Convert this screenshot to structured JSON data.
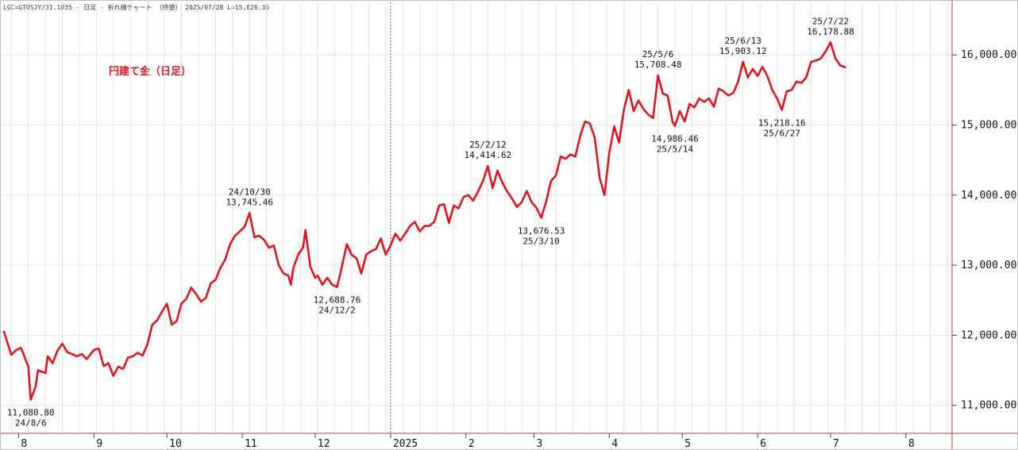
{
  "header": {
    "text": "LGC=GTUSJY/31.1035 - 日足 - 折れ線チャート （終値） 2025/07/28 L=15,826.36"
  },
  "colors": {
    "series": "#e3141b",
    "title": "#e0161e",
    "grid": "#e2e2e2",
    "axis": "#b04040"
  },
  "chart_data": {
    "type": "line",
    "title": "円建て金（日足）",
    "xlabel": "",
    "ylabel": "",
    "x_range": [
      "2024-07-25",
      "2025-08-20"
    ],
    "ylim": [
      10600,
      16750
    ],
    "grid": true,
    "y_ticks": [
      {
        "value": 11000,
        "label": "11,000.00"
      },
      {
        "value": 12000,
        "label": "12,000.00"
      },
      {
        "value": 13000,
        "label": "13,000.00"
      },
      {
        "value": 14000,
        "label": "14,000.00"
      },
      {
        "value": 15000,
        "label": "15,000.00"
      },
      {
        "value": 16000,
        "label": "16,000.00"
      }
    ],
    "x_ticks": [
      {
        "date": "2024-08-01",
        "label": "8"
      },
      {
        "date": "2024-09-01",
        "label": "9"
      },
      {
        "date": "2024-10-01",
        "label": "10"
      },
      {
        "date": "2024-11-01",
        "label": "11"
      },
      {
        "date": "2024-12-01",
        "label": "12"
      },
      {
        "date": "2025-01-01",
        "label": "2025"
      },
      {
        "date": "2025-02-01",
        "label": "2"
      },
      {
        "date": "2025-03-01",
        "label": "3"
      },
      {
        "date": "2025-04-01",
        "label": "4"
      },
      {
        "date": "2025-05-01",
        "label": "5"
      },
      {
        "date": "2025-06-01",
        "label": "6"
      },
      {
        "date": "2025-07-01",
        "label": "7"
      },
      {
        "date": "2025-08-01",
        "label": "8"
      }
    ],
    "year_divider": "2025-01-01",
    "series": [
      {
        "points": [
          [
            "2024-07-26",
            12050
          ],
          [
            "2024-07-29",
            11720
          ],
          [
            "2024-07-31",
            11790
          ],
          [
            "2024-08-02",
            11820
          ],
          [
            "2024-08-05",
            11550
          ],
          [
            "2024-08-06",
            11080.8
          ],
          [
            "2024-08-08",
            11270
          ],
          [
            "2024-08-09",
            11500
          ],
          [
            "2024-08-12",
            11460
          ],
          [
            "2024-08-13",
            11700
          ],
          [
            "2024-08-15",
            11600
          ],
          [
            "2024-08-17",
            11780
          ],
          [
            "2024-08-19",
            11880
          ],
          [
            "2024-08-21",
            11760
          ],
          [
            "2024-08-23",
            11730
          ],
          [
            "2024-08-25",
            11700
          ],
          [
            "2024-08-27",
            11730
          ],
          [
            "2024-08-29",
            11660
          ],
          [
            "2024-09-01",
            11790
          ],
          [
            "2024-09-03",
            11810
          ],
          [
            "2024-09-05",
            11560
          ],
          [
            "2024-09-07",
            11600
          ],
          [
            "2024-09-09",
            11420
          ],
          [
            "2024-09-11",
            11550
          ],
          [
            "2024-09-13",
            11520
          ],
          [
            "2024-09-15",
            11680
          ],
          [
            "2024-09-17",
            11700
          ],
          [
            "2024-09-19",
            11750
          ],
          [
            "2024-09-21",
            11710
          ],
          [
            "2024-09-23",
            11870
          ],
          [
            "2024-09-25",
            12150
          ],
          [
            "2024-09-27",
            12210
          ],
          [
            "2024-09-29",
            12340
          ],
          [
            "2024-10-01",
            12450
          ],
          [
            "2024-10-03",
            12150
          ],
          [
            "2024-10-05",
            12200
          ],
          [
            "2024-10-07",
            12450
          ],
          [
            "2024-10-09",
            12520
          ],
          [
            "2024-10-11",
            12680
          ],
          [
            "2024-10-13",
            12590
          ],
          [
            "2024-10-15",
            12480
          ],
          [
            "2024-10-17",
            12530
          ],
          [
            "2024-10-19",
            12740
          ],
          [
            "2024-10-21",
            12790
          ],
          [
            "2024-10-23",
            12960
          ],
          [
            "2024-10-25",
            13080
          ],
          [
            "2024-10-27",
            13300
          ],
          [
            "2024-10-29",
            13420
          ],
          [
            "2024-10-31",
            13480
          ],
          [
            "2024-11-02",
            13550
          ],
          [
            "2024-11-04",
            13745.46
          ],
          [
            "2024-11-06",
            13400
          ],
          [
            "2024-11-08",
            13420
          ],
          [
            "2024-11-10",
            13360
          ],
          [
            "2024-11-12",
            13250
          ],
          [
            "2024-11-14",
            13280
          ],
          [
            "2024-11-16",
            13000
          ],
          [
            "2024-11-18",
            12880
          ],
          [
            "2024-11-20",
            12850
          ],
          [
            "2024-11-21",
            12720
          ],
          [
            "2024-11-22",
            12960
          ],
          [
            "2024-11-24",
            13150
          ],
          [
            "2024-11-26",
            13250
          ],
          [
            "2024-11-27",
            13500
          ],
          [
            "2024-11-29",
            12980
          ],
          [
            "2024-12-01",
            12820
          ],
          [
            "2024-12-02",
            12850
          ],
          [
            "2024-12-04",
            12720
          ],
          [
            "2024-12-06",
            12820
          ],
          [
            "2024-12-08",
            12720
          ],
          [
            "2024-12-10",
            12688.76
          ],
          [
            "2024-12-12",
            12980
          ],
          [
            "2024-12-14",
            13300
          ],
          [
            "2024-12-16",
            13150
          ],
          [
            "2024-12-18",
            13100
          ],
          [
            "2024-12-20",
            12880
          ],
          [
            "2024-12-22",
            13150
          ],
          [
            "2024-12-24",
            13200
          ],
          [
            "2024-12-26",
            13230
          ],
          [
            "2024-12-28",
            13380
          ],
          [
            "2024-12-30",
            13150
          ],
          [
            "2025-01-01",
            13280
          ],
          [
            "2025-01-03",
            13450
          ],
          [
            "2025-01-05",
            13350
          ],
          [
            "2025-01-07",
            13450
          ],
          [
            "2025-01-09",
            13560
          ],
          [
            "2025-01-11",
            13620
          ],
          [
            "2025-01-13",
            13480
          ],
          [
            "2025-01-15",
            13560
          ],
          [
            "2025-01-17",
            13560
          ],
          [
            "2025-01-19",
            13620
          ],
          [
            "2025-01-21",
            13850
          ],
          [
            "2025-01-23",
            13870
          ],
          [
            "2025-01-25",
            13600
          ],
          [
            "2025-01-27",
            13850
          ],
          [
            "2025-01-29",
            13810
          ],
          [
            "2025-01-31",
            13970
          ],
          [
            "2025-02-02",
            14000
          ],
          [
            "2025-02-04",
            13920
          ],
          [
            "2025-02-06",
            14050
          ],
          [
            "2025-02-08",
            14200
          ],
          [
            "2025-02-10",
            14414.62
          ],
          [
            "2025-02-12",
            14100
          ],
          [
            "2025-02-14",
            14350
          ],
          [
            "2025-02-16",
            14180
          ],
          [
            "2025-02-18",
            14050
          ],
          [
            "2025-02-20",
            13950
          ],
          [
            "2025-02-22",
            13830
          ],
          [
            "2025-02-24",
            13900
          ],
          [
            "2025-02-26",
            14060
          ],
          [
            "2025-02-28",
            13900
          ],
          [
            "2025-03-02",
            13820
          ],
          [
            "2025-03-04",
            13676.53
          ],
          [
            "2025-03-06",
            13900
          ],
          [
            "2025-03-08",
            14200
          ],
          [
            "2025-03-10",
            14280
          ],
          [
            "2025-03-12",
            14550
          ],
          [
            "2025-03-14",
            14520
          ],
          [
            "2025-03-16",
            14580
          ],
          [
            "2025-03-18",
            14550
          ],
          [
            "2025-03-20",
            14840
          ],
          [
            "2025-03-22",
            15050
          ],
          [
            "2025-03-24",
            15020
          ],
          [
            "2025-03-26",
            14820
          ],
          [
            "2025-03-28",
            14250
          ],
          [
            "2025-03-30",
            14000
          ],
          [
            "2025-04-01",
            14600
          ],
          [
            "2025-04-03",
            14980
          ],
          [
            "2025-04-05",
            14750
          ],
          [
            "2025-04-07",
            15220
          ],
          [
            "2025-04-09",
            15500
          ],
          [
            "2025-04-11",
            15200
          ],
          [
            "2025-04-13",
            15350
          ],
          [
            "2025-04-15",
            15230
          ],
          [
            "2025-04-17",
            15150
          ],
          [
            "2025-04-19",
            15100
          ],
          [
            "2025-04-21",
            15708.48
          ],
          [
            "2025-04-23",
            15450
          ],
          [
            "2025-04-25",
            15420
          ],
          [
            "2025-04-27",
            15050
          ],
          [
            "2025-04-28",
            14986.46
          ],
          [
            "2025-04-30",
            15200
          ],
          [
            "2025-05-02",
            15050
          ],
          [
            "2025-05-04",
            15300
          ],
          [
            "2025-05-06",
            15250
          ],
          [
            "2025-05-08",
            15380
          ],
          [
            "2025-05-10",
            15330
          ],
          [
            "2025-05-12",
            15380
          ],
          [
            "2025-05-14",
            15260
          ],
          [
            "2025-05-16",
            15520
          ],
          [
            "2025-05-18",
            15480
          ],
          [
            "2025-05-20",
            15420
          ],
          [
            "2025-05-22",
            15460
          ],
          [
            "2025-05-24",
            15620
          ],
          [
            "2025-05-26",
            15903.12
          ],
          [
            "2025-05-28",
            15680
          ],
          [
            "2025-05-30",
            15800
          ],
          [
            "2025-06-01",
            15700
          ],
          [
            "2025-06-03",
            15830
          ],
          [
            "2025-06-05",
            15700
          ],
          [
            "2025-06-07",
            15500
          ],
          [
            "2025-06-09",
            15380
          ],
          [
            "2025-06-11",
            15218.16
          ],
          [
            "2025-06-13",
            15480
          ],
          [
            "2025-06-15",
            15500
          ],
          [
            "2025-06-17",
            15620
          ],
          [
            "2025-06-19",
            15600
          ],
          [
            "2025-06-21",
            15680
          ],
          [
            "2025-06-23",
            15900
          ],
          [
            "2025-06-25",
            15920
          ],
          [
            "2025-06-27",
            15950
          ],
          [
            "2025-06-29",
            16050
          ],
          [
            "2025-07-01",
            16178.88
          ],
          [
            "2025-07-03",
            15950
          ],
          [
            "2025-07-05",
            15850
          ],
          [
            "2025-07-07",
            15826.36
          ]
        ]
      }
    ],
    "annotations": [
      {
        "date": "2024-08-06",
        "value": 11080.8,
        "pos": "below",
        "lines": [
          "11,080.80",
          "24/8/6"
        ]
      },
      {
        "date": "2024-11-04",
        "value": 13745.46,
        "pos": "above",
        "lines": [
          "24/10/30",
          "13,745.46"
        ]
      },
      {
        "date": "2024-12-10",
        "value": 12688.76,
        "pos": "below",
        "lines": [
          "12,688.76",
          "24/12/2"
        ]
      },
      {
        "date": "2025-02-10",
        "value": 14414.62,
        "pos": "above",
        "lines": [
          "25/2/12",
          "14,414.62"
        ]
      },
      {
        "date": "2025-03-04",
        "value": 13676.53,
        "pos": "below",
        "lines": [
          "13,676.53",
          "25/3/10"
        ]
      },
      {
        "date": "2025-04-21",
        "value": 15708.48,
        "pos": "above",
        "lines": [
          "25/5/6",
          "15,708.48"
        ]
      },
      {
        "date": "2025-04-28",
        "value": 14986.46,
        "pos": "below",
        "lines": [
          "14,986.46",
          "25/5/14"
        ]
      },
      {
        "date": "2025-05-26",
        "value": 15903.12,
        "pos": "above",
        "lines": [
          "25/6/13",
          "15,903.12"
        ]
      },
      {
        "date": "2025-06-11",
        "value": 15218.16,
        "pos": "below",
        "lines": [
          "15,218.16",
          "25/6/27"
        ]
      },
      {
        "date": "2025-07-01",
        "value": 16178.88,
        "pos": "above",
        "lines": [
          "25/7/22",
          "16,178.88"
        ]
      }
    ]
  }
}
